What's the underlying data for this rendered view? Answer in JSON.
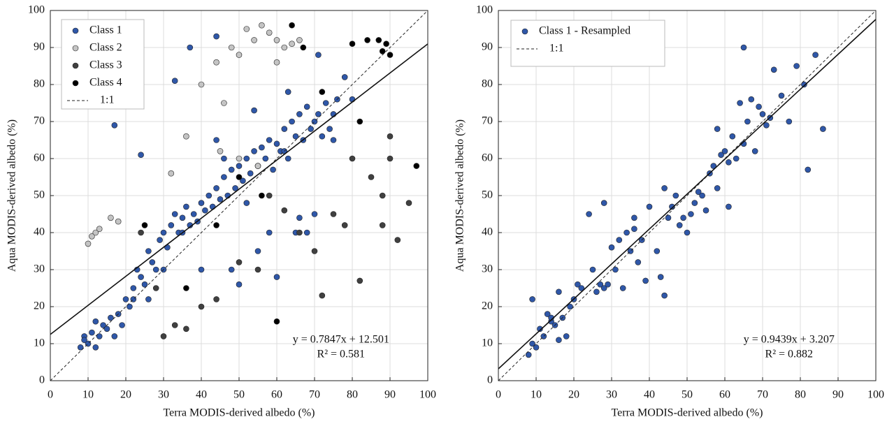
{
  "chart_data": [
    {
      "type": "scatter",
      "x_label": "Terra MODIS-derived albedo (%)",
      "y_label": "Aqua MODIS-derived albedo (%)",
      "xlim": [
        0,
        100
      ],
      "ylim": [
        0,
        100
      ],
      "xticks": [
        0,
        10,
        20,
        30,
        40,
        50,
        60,
        70,
        80,
        90,
        100
      ],
      "yticks": [
        0,
        10,
        20,
        30,
        40,
        50,
        60,
        70,
        80,
        90,
        100
      ],
      "grid": true,
      "legend": "upper left",
      "series": [
        {
          "name": "Class 1",
          "color": "#2f57a8",
          "x": [
            8,
            9,
            10,
            11,
            12,
            13,
            14,
            15,
            16,
            17,
            18,
            19,
            20,
            21,
            22,
            23,
            24,
            25,
            26,
            27,
            28,
            29,
            30,
            31,
            32,
            33,
            34,
            35,
            36,
            37,
            38,
            39,
            40,
            41,
            42,
            43,
            44,
            45,
            46,
            47,
            48,
            49,
            50,
            51,
            52,
            53,
            54,
            55,
            56,
            57,
            58,
            59,
            60,
            61,
            62,
            63,
            64,
            65,
            66,
            67,
            68,
            69,
            70,
            71,
            72,
            73,
            74,
            75,
            76,
            78,
            17,
            24,
            33,
            37,
            44,
            48,
            50,
            55,
            60,
            65,
            70,
            44,
            52,
            58,
            62,
            66,
            68,
            40,
            35,
            30,
            26,
            22,
            12,
            9,
            46,
            54,
            63,
            71,
            75,
            80
          ],
          "values": [
            9,
            12,
            10,
            13,
            16,
            12,
            15,
            14,
            17,
            12,
            18,
            15,
            22,
            20,
            25,
            30,
            28,
            26,
            35,
            32,
            30,
            38,
            40,
            36,
            42,
            45,
            40,
            44,
            47,
            42,
            45,
            43,
            48,
            46,
            50,
            47,
            52,
            49,
            55,
            50,
            57,
            52,
            58,
            54,
            60,
            56,
            62,
            58,
            63,
            60,
            65,
            57,
            64,
            62,
            68,
            60,
            70,
            66,
            72,
            65,
            74,
            68,
            70,
            72,
            66,
            75,
            68,
            72,
            76,
            82,
            69,
            61,
            81,
            90,
            93,
            30,
            26,
            35,
            28,
            40,
            45,
            65,
            48,
            40,
            62,
            44,
            40,
            30,
            40,
            30,
            22,
            22,
            9,
            11,
            60,
            73,
            78,
            88,
            65,
            76
          ]
        },
        {
          "name": "Class 2",
          "color": "#c4c4c4",
          "x": [
            10,
            11,
            12,
            13,
            16,
            18,
            32,
            36,
            40,
            44,
            46,
            48,
            50,
            52,
            54,
            56,
            58,
            60,
            62,
            64,
            66,
            50,
            55,
            45,
            60
          ],
          "values": [
            37,
            39,
            40,
            41,
            44,
            43,
            56,
            66,
            80,
            86,
            75,
            90,
            88,
            95,
            92,
            96,
            94,
            92,
            90,
            91,
            92,
            60,
            58,
            62,
            86
          ]
        },
        {
          "name": "Class 3",
          "color": "#404040",
          "x": [
            24,
            28,
            30,
            33,
            36,
            40,
            44,
            50,
            55,
            58,
            62,
            66,
            70,
            72,
            78,
            82,
            85,
            88,
            90,
            92,
            95,
            90,
            88,
            80,
            75
          ],
          "values": [
            40,
            25,
            12,
            15,
            14,
            20,
            22,
            32,
            30,
            50,
            46,
            40,
            35,
            23,
            42,
            27,
            55,
            50,
            60,
            38,
            48,
            66,
            42,
            60,
            45
          ]
        },
        {
          "name": "Class 4",
          "color": "#000000",
          "x": [
            25,
            36,
            44,
            56,
            60,
            64,
            67,
            72,
            80,
            84,
            87,
            88,
            89,
            90,
            82,
            50,
            97
          ],
          "values": [
            42,
            25,
            42,
            50,
            16,
            96,
            90,
            78,
            91,
            92,
            92,
            89,
            91,
            88,
            70,
            55,
            58
          ]
        }
      ],
      "reference_line": {
        "name": "1:1",
        "style": "dashed"
      },
      "fit": {
        "slope": 0.7847,
        "intercept": 12.501,
        "equation": "y = 0.7847x + 12.501",
        "r_squared": "R² = 0.581"
      }
    },
    {
      "type": "scatter",
      "x_label": "Terra MODIS-derived albedo (%)",
      "y_label": "Aqua MODIS-derived albedo (%)",
      "xlim": [
        0,
        100
      ],
      "ylim": [
        0,
        100
      ],
      "xticks": [
        0,
        10,
        20,
        30,
        40,
        50,
        60,
        70,
        80,
        90,
        100
      ],
      "yticks": [
        0,
        10,
        20,
        30,
        40,
        50,
        60,
        70,
        80,
        90,
        100
      ],
      "grid": true,
      "legend": "upper left",
      "series": [
        {
          "name": "Class 1 - Resampled",
          "color": "#2f57a8",
          "x": [
            8,
            9,
            9,
            10,
            11,
            12,
            13,
            14,
            15,
            16,
            17,
            18,
            19,
            20,
            21,
            22,
            25,
            26,
            27,
            28,
            29,
            30,
            31,
            32,
            33,
            34,
            35,
            36,
            37,
            38,
            39,
            40,
            42,
            43,
            44,
            45,
            46,
            47,
            48,
            49,
            50,
            51,
            52,
            53,
            54,
            55,
            56,
            57,
            58,
            59,
            60,
            61,
            62,
            63,
            64,
            65,
            66,
            67,
            68,
            69,
            70,
            71,
            72,
            73,
            75,
            77,
            79,
            81,
            82,
            84,
            86,
            65,
            24,
            28,
            44,
            61,
            58,
            36,
            16,
            14
          ],
          "values": [
            7,
            10,
            22,
            9,
            14,
            12,
            18,
            16,
            15,
            24,
            17,
            12,
            20,
            22,
            26,
            25,
            30,
            24,
            26,
            25,
            26,
            36,
            30,
            38,
            25,
            40,
            35,
            41,
            32,
            38,
            27,
            47,
            35,
            28,
            52,
            44,
            47,
            50,
            42,
            44,
            40,
            45,
            48,
            51,
            50,
            46,
            56,
            58,
            52,
            61,
            62,
            59,
            66,
            60,
            75,
            64,
            70,
            76,
            62,
            74,
            72,
            69,
            71,
            84,
            77,
            70,
            85,
            80,
            57,
            88,
            68,
            90,
            45,
            48,
            23,
            47,
            68,
            44,
            11,
            17
          ]
        }
      ],
      "reference_line": {
        "name": "1:1",
        "style": "dashed"
      },
      "fit": {
        "slope": 0.9439,
        "intercept": 3.207,
        "equation": "y = 0.9439x + 3.207",
        "r_squared": "R² = 0.882"
      }
    }
  ]
}
